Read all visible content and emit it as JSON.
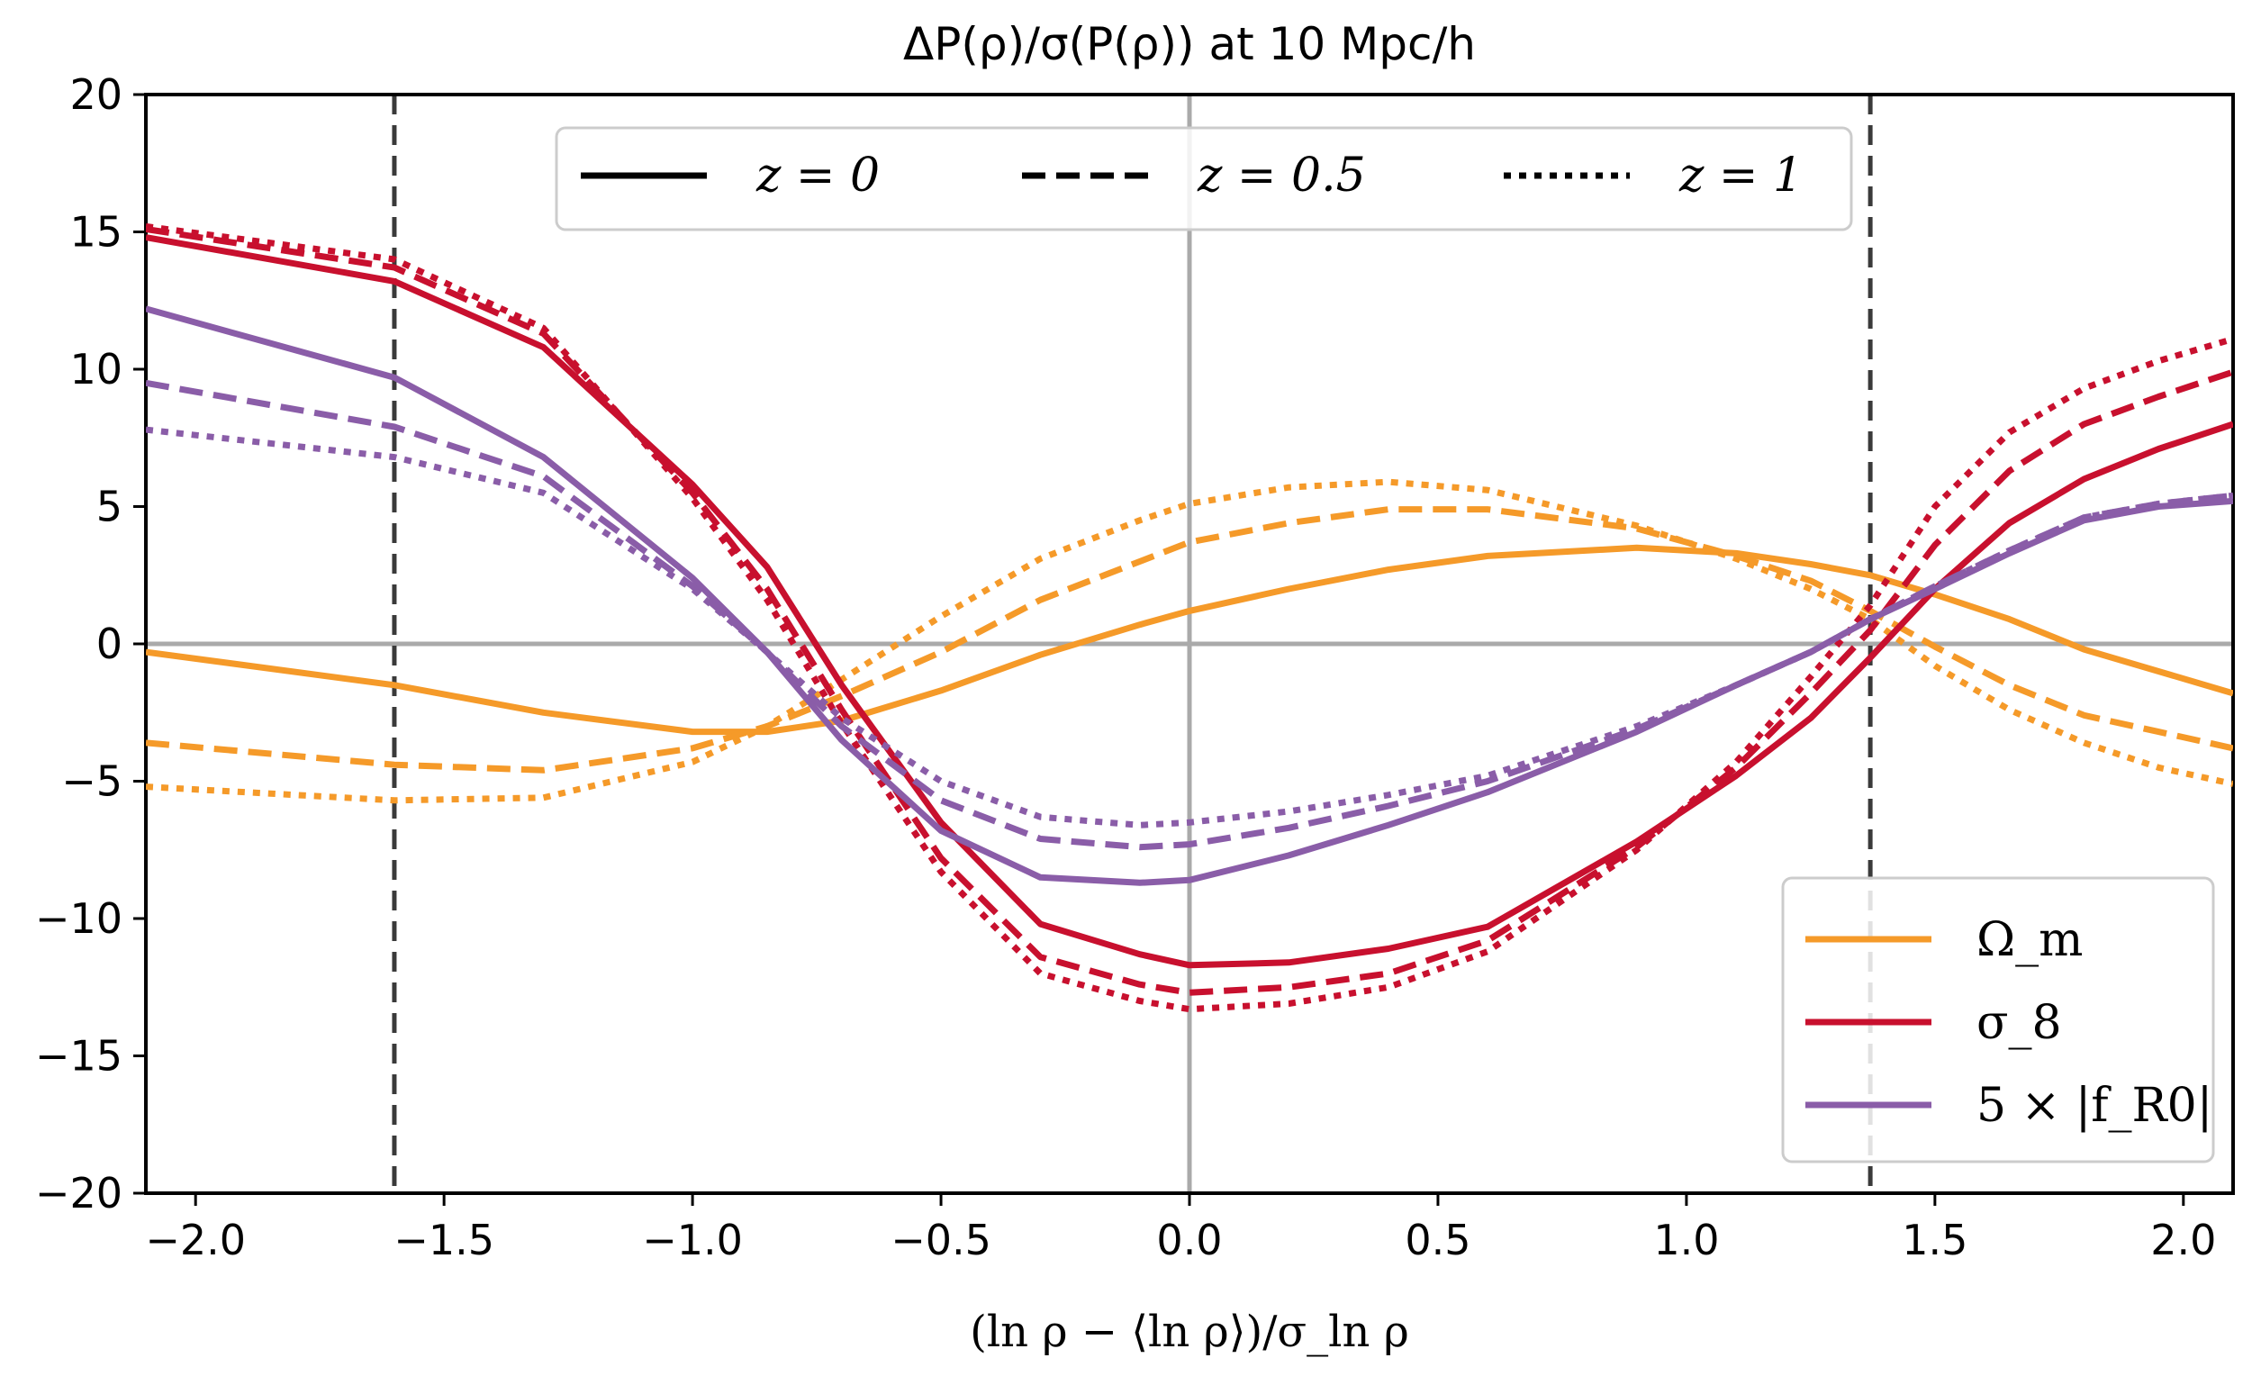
{
  "chart_data": {
    "type": "line",
    "title": "ΔP(ρ)/σ(P(ρ)) at 10 Mpc/h",
    "xlabel": "(ln ρ − ⟨ln ρ⟩)/σ_ln ρ",
    "ylabel": "",
    "xlim": [
      -2.1,
      2.1
    ],
    "ylim": [
      -20,
      20
    ],
    "xticks": [
      -2.0,
      -1.5,
      -1.0,
      -0.5,
      0.0,
      0.5,
      1.0,
      1.5,
      2.0
    ],
    "xtick_labels": [
      "−2.0",
      "−1.5",
      "−1.0",
      "−0.5",
      "0.0",
      "0.5",
      "1.0",
      "1.5",
      "2.0"
    ],
    "yticks": [
      -20,
      -15,
      -10,
      -5,
      0,
      5,
      10,
      15,
      20
    ],
    "ytick_labels": [
      "−20",
      "−15",
      "−10",
      "−5",
      "0",
      "5",
      "10",
      "15",
      "20"
    ],
    "grid": false,
    "reference_lines": {
      "horizontal_gray": 0.0,
      "vertical_gray": 0.0,
      "vertical_dashed": [
        -1.6,
        1.37
      ]
    },
    "legend_linestyle": {
      "position": "top-center",
      "entries": [
        {
          "label": "z = 0",
          "style": "solid"
        },
        {
          "label": "z = 0.5",
          "style": "dashed"
        },
        {
          "label": "z = 1",
          "style": "dotted"
        }
      ]
    },
    "legend_params": {
      "position": "lower-right",
      "entries": [
        {
          "label": "Ω_m",
          "color": "#f59a29"
        },
        {
          "label": "σ_8",
          "color": "#c8102e"
        },
        {
          "label": "5 × |f_R0|",
          "color": "#8a5da8"
        }
      ]
    },
    "x": [
      -2.1,
      -1.6,
      -1.3,
      -1.0,
      -0.85,
      -0.7,
      -0.5,
      -0.3,
      -0.1,
      0.0,
      0.2,
      0.4,
      0.6,
      0.9,
      1.1,
      1.25,
      1.37,
      1.5,
      1.65,
      1.8,
      1.95,
      2.1
    ],
    "series": [
      {
        "name": "Ω_m, z=0",
        "param": "Omega_m",
        "z": "0",
        "style": "solid",
        "color": "#f59a29",
        "values": [
          -0.3,
          -1.5,
          -2.5,
          -3.2,
          -3.2,
          -2.8,
          -1.7,
          -0.4,
          0.7,
          1.2,
          2.0,
          2.7,
          3.2,
          3.5,
          3.3,
          2.9,
          2.5,
          1.8,
          0.9,
          -0.2,
          -1.0,
          -1.8
        ]
      },
      {
        "name": "Ω_m, z=0.5",
        "param": "Omega_m",
        "z": "0.5",
        "style": "dashed",
        "color": "#f59a29",
        "values": [
          -3.6,
          -4.4,
          -4.6,
          -3.8,
          -3.0,
          -1.9,
          -0.3,
          1.6,
          3.0,
          3.7,
          4.4,
          4.9,
          4.9,
          4.2,
          3.2,
          2.3,
          1.2,
          -0.1,
          -1.5,
          -2.6,
          -3.2,
          -3.8
        ]
      },
      {
        "name": "Ω_m, z=1",
        "param": "Omega_m",
        "z": "1",
        "style": "dotted",
        "color": "#f59a29",
        "values": [
          -5.2,
          -5.7,
          -5.6,
          -4.3,
          -3.0,
          -1.3,
          1.0,
          3.1,
          4.5,
          5.1,
          5.7,
          5.9,
          5.6,
          4.3,
          3.1,
          2.0,
          0.9,
          -0.8,
          -2.4,
          -3.6,
          -4.5,
          -5.1
        ]
      },
      {
        "name": "σ_8, z=0",
        "param": "sigma_8",
        "z": "0",
        "style": "solid",
        "color": "#c8102e",
        "values": [
          14.8,
          13.2,
          10.8,
          5.8,
          2.8,
          -1.5,
          -6.5,
          -10.2,
          -11.3,
          -11.7,
          -11.6,
          -11.1,
          -10.3,
          -7.2,
          -4.8,
          -2.7,
          -0.5,
          2.0,
          4.4,
          6.0,
          7.1,
          8.0
        ]
      },
      {
        "name": "σ_8, z=0.5",
        "param": "sigma_8",
        "z": "0.5",
        "style": "dashed",
        "color": "#c8102e",
        "values": [
          15.1,
          13.7,
          11.3,
          5.5,
          2.0,
          -2.4,
          -7.8,
          -11.4,
          -12.4,
          -12.7,
          -12.5,
          -12.0,
          -10.8,
          -7.4,
          -4.5,
          -1.8,
          0.5,
          3.6,
          6.3,
          8.0,
          9.0,
          9.9
        ]
      },
      {
        "name": "σ_8, z=1",
        "param": "sigma_8",
        "z": "1",
        "style": "dotted",
        "color": "#c8102e",
        "values": [
          15.2,
          14.0,
          11.5,
          5.3,
          1.6,
          -2.9,
          -8.3,
          -12.0,
          -13.0,
          -13.3,
          -13.1,
          -12.5,
          -11.2,
          -7.5,
          -4.3,
          -1.2,
          1.4,
          5.0,
          7.7,
          9.3,
          10.3,
          11.1
        ]
      },
      {
        "name": "5×|f_R0|, z=0",
        "param": "fR0",
        "z": "0",
        "style": "solid",
        "color": "#8a5da8",
        "values": [
          12.2,
          9.7,
          6.8,
          2.4,
          -0.3,
          -3.5,
          -6.8,
          -8.5,
          -8.7,
          -8.6,
          -7.7,
          -6.6,
          -5.4,
          -3.2,
          -1.5,
          -0.3,
          0.9,
          2.0,
          3.3,
          4.5,
          5.0,
          5.2
        ]
      },
      {
        "name": "5×|f_R0|, z=0.5",
        "param": "fR0",
        "z": "0.5",
        "style": "dashed",
        "color": "#8a5da8",
        "values": [
          9.5,
          7.9,
          6.1,
          2.1,
          -0.3,
          -3.0,
          -5.7,
          -7.1,
          -7.4,
          -7.3,
          -6.7,
          -5.9,
          -5.0,
          -3.1,
          -1.5,
          -0.3,
          0.9,
          2.1,
          3.4,
          4.6,
          5.1,
          5.4
        ]
      },
      {
        "name": "5×|f_R0|, z=1",
        "param": "fR0",
        "z": "1",
        "style": "dotted",
        "color": "#8a5da8",
        "values": [
          7.8,
          6.8,
          5.5,
          2.0,
          -0.3,
          -2.7,
          -5.0,
          -6.3,
          -6.6,
          -6.5,
          -6.1,
          -5.5,
          -4.8,
          -3.0,
          -1.5,
          -0.3,
          0.9,
          2.1,
          3.4,
          4.6,
          5.1,
          5.4
        ]
      }
    ]
  }
}
